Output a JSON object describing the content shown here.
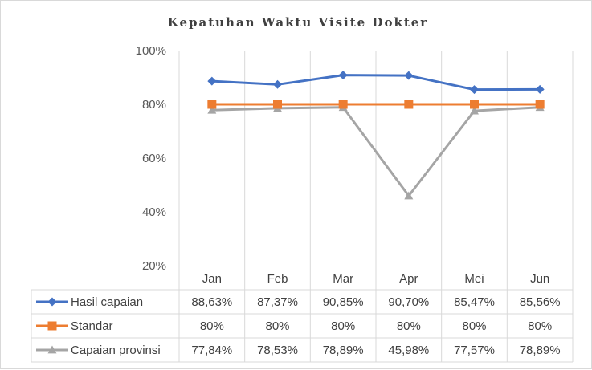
{
  "chart_data": {
    "type": "line",
    "title": "Kepatuhan Waktu Visite Dokter",
    "categories": [
      "Jan",
      "Feb",
      "Mar",
      "Apr",
      "Mei",
      "Jun"
    ],
    "ylim": [
      0.2,
      1.0
    ],
    "yticks": [
      "20%",
      "40%",
      "60%",
      "80%",
      "100%"
    ],
    "grid": "vertical",
    "legend": "data-table",
    "series": [
      {
        "name": "Hasil capaian",
        "marker": "diamond",
        "color": "#4472c4",
        "values": [
          0.8863,
          0.8737,
          0.9085,
          0.907,
          0.8547,
          0.8556
        ],
        "labels": [
          "88,63%",
          "87,37%",
          "90,85%",
          "90,70%",
          "85,47%",
          "85,56%"
        ]
      },
      {
        "name": "Standar",
        "marker": "square",
        "color": "#ed7d31",
        "values": [
          0.8,
          0.8,
          0.8,
          0.8,
          0.8,
          0.8
        ],
        "labels": [
          "80%",
          "80%",
          "80%",
          "80%",
          "80%",
          "80%"
        ]
      },
      {
        "name": "Capaian provinsi",
        "marker": "triangle",
        "color": "#a5a5a5",
        "values": [
          0.7784,
          0.7853,
          0.7889,
          0.4598,
          0.7757,
          0.7889
        ],
        "labels": [
          "77,84%",
          "78,53%",
          "78,89%",
          "45,98%",
          "77,57%",
          "78,89%"
        ]
      }
    ]
  }
}
